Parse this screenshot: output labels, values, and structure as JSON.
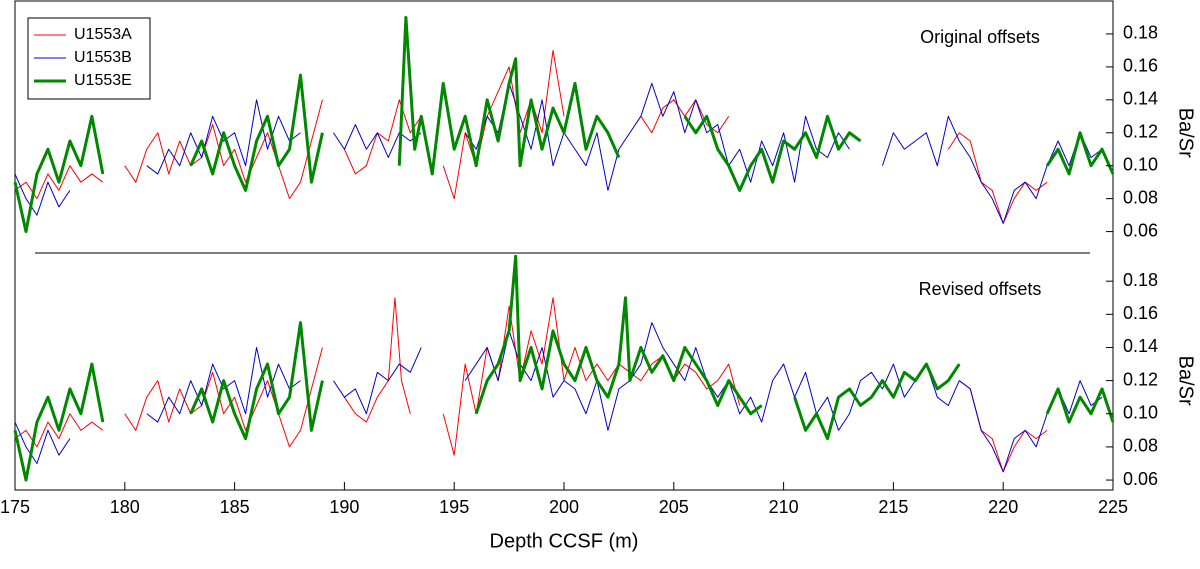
{
  "chart_data": [
    {
      "type": "line",
      "title": "Original offsets",
      "y_label": "Ba/Sr",
      "legend": "upper left",
      "xlim": [
        175,
        225
      ],
      "ylim": [
        0.047,
        0.2
      ],
      "yticks": [
        0.06,
        0.08,
        {
          "value": 0.1,
          "label": "0.10"
        },
        0.12,
        0.14,
        0.16,
        0.18
      ],
      "series": [
        {
          "name": "U1553A",
          "color": "#ff0000",
          "linewidth": 1,
          "x": [
            175,
            175.5,
            176,
            176.5,
            177,
            177.5,
            178,
            178.5,
            179,
            179.5,
            180,
            180.5,
            181,
            181.5,
            182,
            182.5,
            183,
            183.5,
            184,
            184.5,
            185,
            185.5,
            186,
            186.5,
            187,
            187.5,
            188,
            188.5,
            189,
            189.5,
            190,
            190.5,
            191,
            191.5,
            192,
            192.5,
            193,
            193.5,
            194,
            194.5,
            195,
            195.5,
            196,
            196.5,
            197,
            197.5,
            198,
            198.5,
            199,
            199.5,
            200,
            201,
            203.5,
            204,
            204.5,
            205,
            205.5,
            206,
            206.5,
            207,
            207.5,
            210,
            217.5,
            218,
            218.5,
            219,
            219.5,
            220,
            220.5,
            221,
            221.5,
            222
          ],
          "values": [
            0.085,
            0.09,
            0.08,
            0.095,
            0.085,
            0.1,
            0.09,
            0.095,
            0.09,
            null,
            0.1,
            0.09,
            0.11,
            0.12,
            0.095,
            0.115,
            0.1,
            0.105,
            0.125,
            0.1,
            0.11,
            0.09,
            0.105,
            0.12,
            0.1,
            0.08,
            0.09,
            0.115,
            0.14,
            null,
            0.11,
            0.095,
            0.1,
            0.12,
            0.115,
            0.14,
            0.12,
            0.13,
            null,
            0.1,
            0.08,
            0.12,
            0.1,
            0.13,
            0.145,
            0.16,
            0.12,
            0.14,
            0.12,
            0.17,
            0.13,
            null,
            0.13,
            0.12,
            0.135,
            0.14,
            0.13,
            0.14,
            0.125,
            0.12,
            0.13,
            null,
            0.11,
            0.12,
            0.115,
            0.09,
            0.085,
            0.065,
            0.08,
            0.09,
            0.085,
            0.09
          ]
        },
        {
          "name": "U1553B",
          "color": "#0000cc",
          "linewidth": 1,
          "x": [
            175,
            175.5,
            176,
            176.5,
            177,
            177.5,
            178,
            181,
            181.5,
            182,
            182.5,
            183,
            183.5,
            184,
            184.5,
            185,
            185.5,
            186,
            186.5,
            187,
            187.5,
            188,
            188.5,
            189.5,
            190,
            190.5,
            191,
            191.5,
            192,
            192.5,
            193,
            193.5,
            194,
            195.5,
            196,
            196.5,
            197,
            197.5,
            198,
            198.5,
            199,
            199.5,
            200,
            200.5,
            201,
            201.5,
            202,
            202.5,
            203,
            203.5,
            204,
            204.5,
            205,
            205.5,
            206,
            206.5,
            207,
            207.5,
            208,
            208.5,
            209,
            209.5,
            210,
            210.5,
            211,
            211.5,
            212,
            212.5,
            213,
            213.5,
            214.5,
            215,
            215.5,
            216,
            216.5,
            217,
            217.5,
            218,
            218.5,
            219,
            219.5,
            220,
            220.5,
            221,
            221.5,
            222,
            222.5,
            223,
            223.5,
            224,
            224.5
          ],
          "values": [
            0.095,
            0.08,
            0.07,
            0.09,
            0.075,
            0.085,
            null,
            0.1,
            0.095,
            0.11,
            0.1,
            0.12,
            0.105,
            0.13,
            0.115,
            0.12,
            0.1,
            0.14,
            0.11,
            0.13,
            0.115,
            0.12,
            null,
            0.12,
            0.11,
            0.125,
            0.11,
            0.12,
            0.105,
            0.12,
            0.115,
            0.12,
            null,
            0.12,
            0.11,
            0.13,
            0.12,
            0.15,
            0.13,
            0.11,
            0.14,
            0.1,
            0.12,
            0.11,
            0.1,
            0.12,
            0.085,
            0.11,
            0.12,
            0.13,
            0.15,
            0.13,
            0.145,
            0.12,
            0.14,
            0.12,
            0.125,
            0.1,
            0.11,
            0.09,
            0.115,
            0.1,
            0.12,
            0.09,
            0.13,
            0.11,
            0.105,
            0.12,
            0.11,
            null,
            0.1,
            0.12,
            0.11,
            0.115,
            0.12,
            0.1,
            0.13,
            0.115,
            0.105,
            0.09,
            0.08,
            0.065,
            0.085,
            0.09,
            0.08,
            0.1,
            0.115,
            0.1,
            0.12,
            0.105,
            0.11
          ]
        },
        {
          "name": "U1553E",
          "color": "#008800",
          "linewidth": 3,
          "x": [
            175,
            175.5,
            176,
            176.5,
            177,
            177.5,
            178,
            178.5,
            179,
            179.5,
            183,
            183.5,
            184,
            184.5,
            185,
            185.5,
            186,
            186.5,
            187,
            187.5,
            188,
            188.5,
            189,
            189.5,
            192.5,
            192.8,
            193.2,
            193.5,
            194,
            194.5,
            195,
            195.5,
            196,
            196.5,
            197,
            197.5,
            197.8,
            198,
            198.5,
            199,
            199.5,
            200,
            200.5,
            201,
            201.5,
            202,
            202.5,
            203,
            205.5,
            206,
            206.5,
            207,
            207.5,
            208,
            208.5,
            209,
            209.5,
            210,
            210.5,
            211,
            211.5,
            212,
            212.5,
            213,
            213.5,
            214,
            222,
            222.5,
            223,
            223.5,
            224,
            224.5,
            225
          ],
          "values": [
            0.09,
            0.06,
            0.095,
            0.11,
            0.09,
            0.115,
            0.1,
            0.13,
            0.095,
            null,
            0.1,
            0.115,
            0.095,
            0.12,
            0.1,
            0.085,
            0.115,
            0.13,
            0.1,
            0.11,
            0.155,
            0.09,
            0.12,
            null,
            0.1,
            0.19,
            0.11,
            0.13,
            0.095,
            0.15,
            0.11,
            0.13,
            0.1,
            0.14,
            0.115,
            0.15,
            0.165,
            0.1,
            0.14,
            0.11,
            0.135,
            0.12,
            0.15,
            0.11,
            0.13,
            0.12,
            0.105,
            null,
            0.13,
            0.12,
            0.13,
            0.11,
            0.1,
            0.085,
            0.1,
            0.11,
            0.09,
            0.115,
            0.11,
            0.12,
            0.105,
            0.13,
            0.11,
            0.12,
            0.115,
            null,
            0.1,
            0.11,
            0.095,
            0.12,
            0.1,
            0.11,
            0.095
          ]
        }
      ]
    },
    {
      "type": "line",
      "title": "Revised offsets",
      "y_label": "Ba/Sr",
      "x_label": "Depth CCSF (m)",
      "xlim": [
        175,
        225
      ],
      "xticks": [
        175,
        180,
        185,
        190,
        195,
        200,
        205,
        210,
        215,
        220,
        225
      ],
      "ylim": [
        0.054,
        0.197
      ],
      "yticks": [
        0.06,
        0.08,
        {
          "value": 0.1,
          "label": "0.10"
        },
        0.12,
        0.14,
        0.16,
        0.18
      ],
      "series": [
        {
          "color": "#ff0000",
          "linewidth": 1,
          "x": [
            175,
            175.5,
            176,
            176.5,
            177,
            177.5,
            178,
            178.5,
            179,
            179.5,
            180,
            180.5,
            181,
            181.5,
            182,
            182.5,
            183,
            183.5,
            184,
            184.5,
            185,
            185.5,
            186,
            186.5,
            187,
            187.5,
            188,
            188.5,
            189,
            189.5,
            190,
            190.5,
            191,
            191.5,
            192,
            192.3,
            192.6,
            193,
            193.5,
            194.5,
            195,
            195.5,
            196,
            196.5,
            197,
            197.5,
            198,
            198.5,
            199,
            199.5,
            200,
            200.5,
            201,
            201.5,
            202,
            202.5,
            203,
            203.5,
            204,
            204.5,
            205,
            205.5,
            206,
            206.5,
            207,
            207.5,
            208,
            208.5,
            218,
            218.5,
            219,
            219.5,
            220,
            220.5,
            221,
            221.5,
            222
          ],
          "values": [
            0.085,
            0.09,
            0.08,
            0.095,
            0.085,
            0.1,
            0.09,
            0.095,
            0.09,
            null,
            0.1,
            0.09,
            0.11,
            0.12,
            0.095,
            0.115,
            0.1,
            0.105,
            0.125,
            0.1,
            0.11,
            0.09,
            0.105,
            0.12,
            0.1,
            0.08,
            0.09,
            0.115,
            0.14,
            null,
            0.11,
            0.1,
            0.095,
            0.11,
            0.12,
            0.17,
            0.12,
            0.1,
            null,
            0.1,
            0.075,
            0.13,
            0.1,
            0.14,
            0.12,
            0.165,
            0.12,
            0.15,
            0.13,
            0.17,
            0.12,
            0.14,
            0.12,
            0.13,
            0.12,
            0.13,
            0.125,
            0.12,
            0.13,
            0.135,
            0.12,
            0.13,
            0.125,
            0.115,
            0.12,
            0.13,
            0.105,
            null,
            0.12,
            0.115,
            0.09,
            0.085,
            0.065,
            0.08,
            0.09,
            0.085,
            0.09
          ]
        },
        {
          "color": "#0000cc",
          "linewidth": 1,
          "x": [
            175,
            175.5,
            176,
            176.5,
            177,
            177.5,
            178,
            181,
            181.5,
            182,
            182.5,
            183,
            183.5,
            184,
            184.5,
            185,
            185.5,
            186,
            186.5,
            187,
            187.5,
            188,
            188.5,
            189.5,
            190,
            190.5,
            191,
            191.5,
            192,
            192.5,
            193,
            193.5,
            194,
            195.5,
            196,
            196.5,
            197,
            197.5,
            198,
            198.5,
            199,
            199.5,
            200,
            200.5,
            201,
            201.5,
            202,
            202.5,
            203,
            203.5,
            204,
            204.5,
            205,
            205.5,
            206,
            206.5,
            207,
            207.5,
            208,
            208.5,
            209,
            209.5,
            210,
            210.5,
            211,
            211.5,
            212,
            212.5,
            213,
            213.5,
            214,
            214.5,
            215,
            215.5,
            216,
            216.5,
            217,
            217.5,
            218,
            218.5,
            219,
            219.5,
            220,
            220.5,
            221,
            221.5,
            222,
            222.5,
            223,
            223.5,
            224,
            224.5
          ],
          "values": [
            0.095,
            0.08,
            0.07,
            0.09,
            0.075,
            0.085,
            null,
            0.1,
            0.095,
            0.11,
            0.1,
            0.12,
            0.105,
            0.13,
            0.115,
            0.12,
            0.1,
            0.14,
            0.11,
            0.13,
            0.115,
            0.12,
            null,
            0.12,
            0.11,
            0.115,
            0.1,
            0.125,
            0.12,
            0.13,
            0.125,
            0.14,
            null,
            0.12,
            0.13,
            0.14,
            0.12,
            0.15,
            0.13,
            0.12,
            0.14,
            0.11,
            0.12,
            0.115,
            0.1,
            0.12,
            0.09,
            0.115,
            0.12,
            0.13,
            0.155,
            0.14,
            0.13,
            0.12,
            0.14,
            0.12,
            0.11,
            0.12,
            0.1,
            0.11,
            0.095,
            0.12,
            0.13,
            0.11,
            0.125,
            0.1,
            0.11,
            0.09,
            0.1,
            0.12,
            0.125,
            0.115,
            0.13,
            0.11,
            0.12,
            0.13,
            0.11,
            0.105,
            0.12,
            0.115,
            0.09,
            0.08,
            0.065,
            0.085,
            0.09,
            0.08,
            0.1,
            0.115,
            0.1,
            0.12,
            0.105,
            0.11
          ]
        },
        {
          "color": "#008800",
          "linewidth": 3,
          "x": [
            175,
            175.5,
            176,
            176.5,
            177,
            177.5,
            178,
            178.5,
            179,
            179.5,
            183,
            183.5,
            184,
            184.5,
            185,
            185.5,
            186,
            186.5,
            187,
            187.5,
            188,
            188.5,
            189,
            189.5,
            196,
            196.5,
            197,
            197.5,
            197.8,
            198,
            198.5,
            199,
            199.5,
            200,
            200.5,
            201,
            201.5,
            202,
            202.5,
            202.8,
            203,
            203.5,
            204,
            204.5,
            205,
            205.5,
            206,
            206.5,
            207,
            207.5,
            208,
            208.5,
            209,
            209.5,
            210.5,
            211,
            211.5,
            212,
            212.5,
            213,
            213.5,
            214,
            214.5,
            215,
            215.5,
            216,
            216.5,
            217,
            217.5,
            218,
            218.5,
            222,
            222.5,
            223,
            223.5,
            224,
            224.5,
            225
          ],
          "values": [
            0.09,
            0.06,
            0.095,
            0.11,
            0.09,
            0.115,
            0.1,
            0.13,
            0.095,
            null,
            0.1,
            0.115,
            0.095,
            0.12,
            0.1,
            0.085,
            0.115,
            0.13,
            0.1,
            0.11,
            0.155,
            0.09,
            0.12,
            null,
            0.1,
            0.12,
            0.13,
            0.15,
            0.195,
            0.12,
            0.14,
            0.115,
            0.15,
            0.13,
            0.12,
            0.14,
            0.12,
            0.11,
            0.13,
            0.17,
            0.12,
            0.14,
            0.125,
            0.135,
            0.12,
            0.14,
            0.13,
            0.12,
            0.105,
            0.12,
            0.11,
            0.1,
            0.105,
            null,
            0.11,
            0.09,
            0.1,
            0.085,
            0.11,
            0.115,
            0.105,
            0.11,
            0.12,
            0.11,
            0.125,
            0.12,
            0.13,
            0.115,
            0.12,
            0.13,
            null,
            0.1,
            0.115,
            0.095,
            0.11,
            0.1,
            0.115,
            0.095
          ]
        }
      ]
    }
  ]
}
